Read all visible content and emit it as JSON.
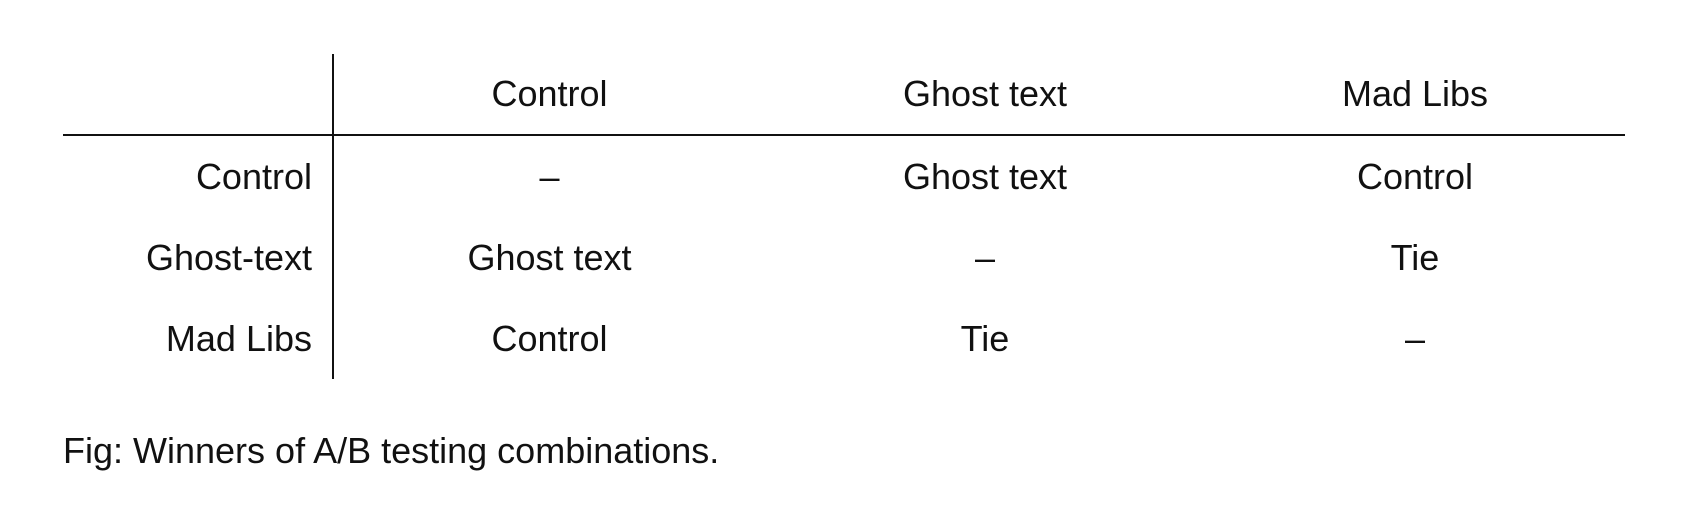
{
  "chart_data": {
    "type": "table",
    "corner": "",
    "columns": [
      "Control",
      "Ghost text",
      "Mad Libs"
    ],
    "rows": [
      {
        "label": "Control",
        "cells": [
          "–",
          "Ghost text",
          "Control"
        ]
      },
      {
        "label": "Ghost-text",
        "cells": [
          "Ghost text",
          "–",
          "Tie"
        ]
      },
      {
        "label": "Mad Libs",
        "cells": [
          "Control",
          "Tie",
          "–"
        ]
      }
    ]
  },
  "caption": "Fig: Winners of A/B testing combinations."
}
